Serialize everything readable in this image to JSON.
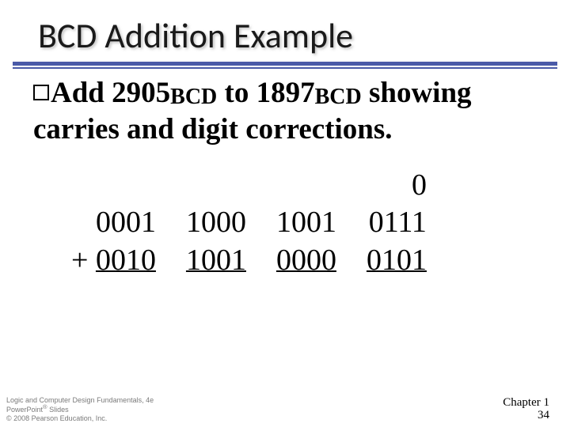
{
  "title": "BCD Addition Example",
  "body": {
    "prefix": "Add 2905",
    "sub1": "BCD",
    "mid": " to 1897",
    "sub2": "BCD",
    "suffix": " showing carries and digit corrections."
  },
  "addition": {
    "carry": [
      "",
      "",
      "",
      "0"
    ],
    "row1": [
      "0001",
      "1000",
      "1001",
      "0111"
    ],
    "row2_prefix": "+ ",
    "row2": [
      "0010",
      "1001",
      "0000",
      "0101"
    ]
  },
  "footer": {
    "line1": "Logic and Computer Design Fundamentals, 4e",
    "line2": "PowerPoint",
    "line2_suffix": "Slides",
    "line3": "© 2008 Pearson Education, Inc."
  },
  "chapter": "Chapter 1",
  "pagenum": "34",
  "colors": {
    "rule": "#4a5aa8",
    "text": "#000000",
    "footer": "#7a7a7a"
  }
}
